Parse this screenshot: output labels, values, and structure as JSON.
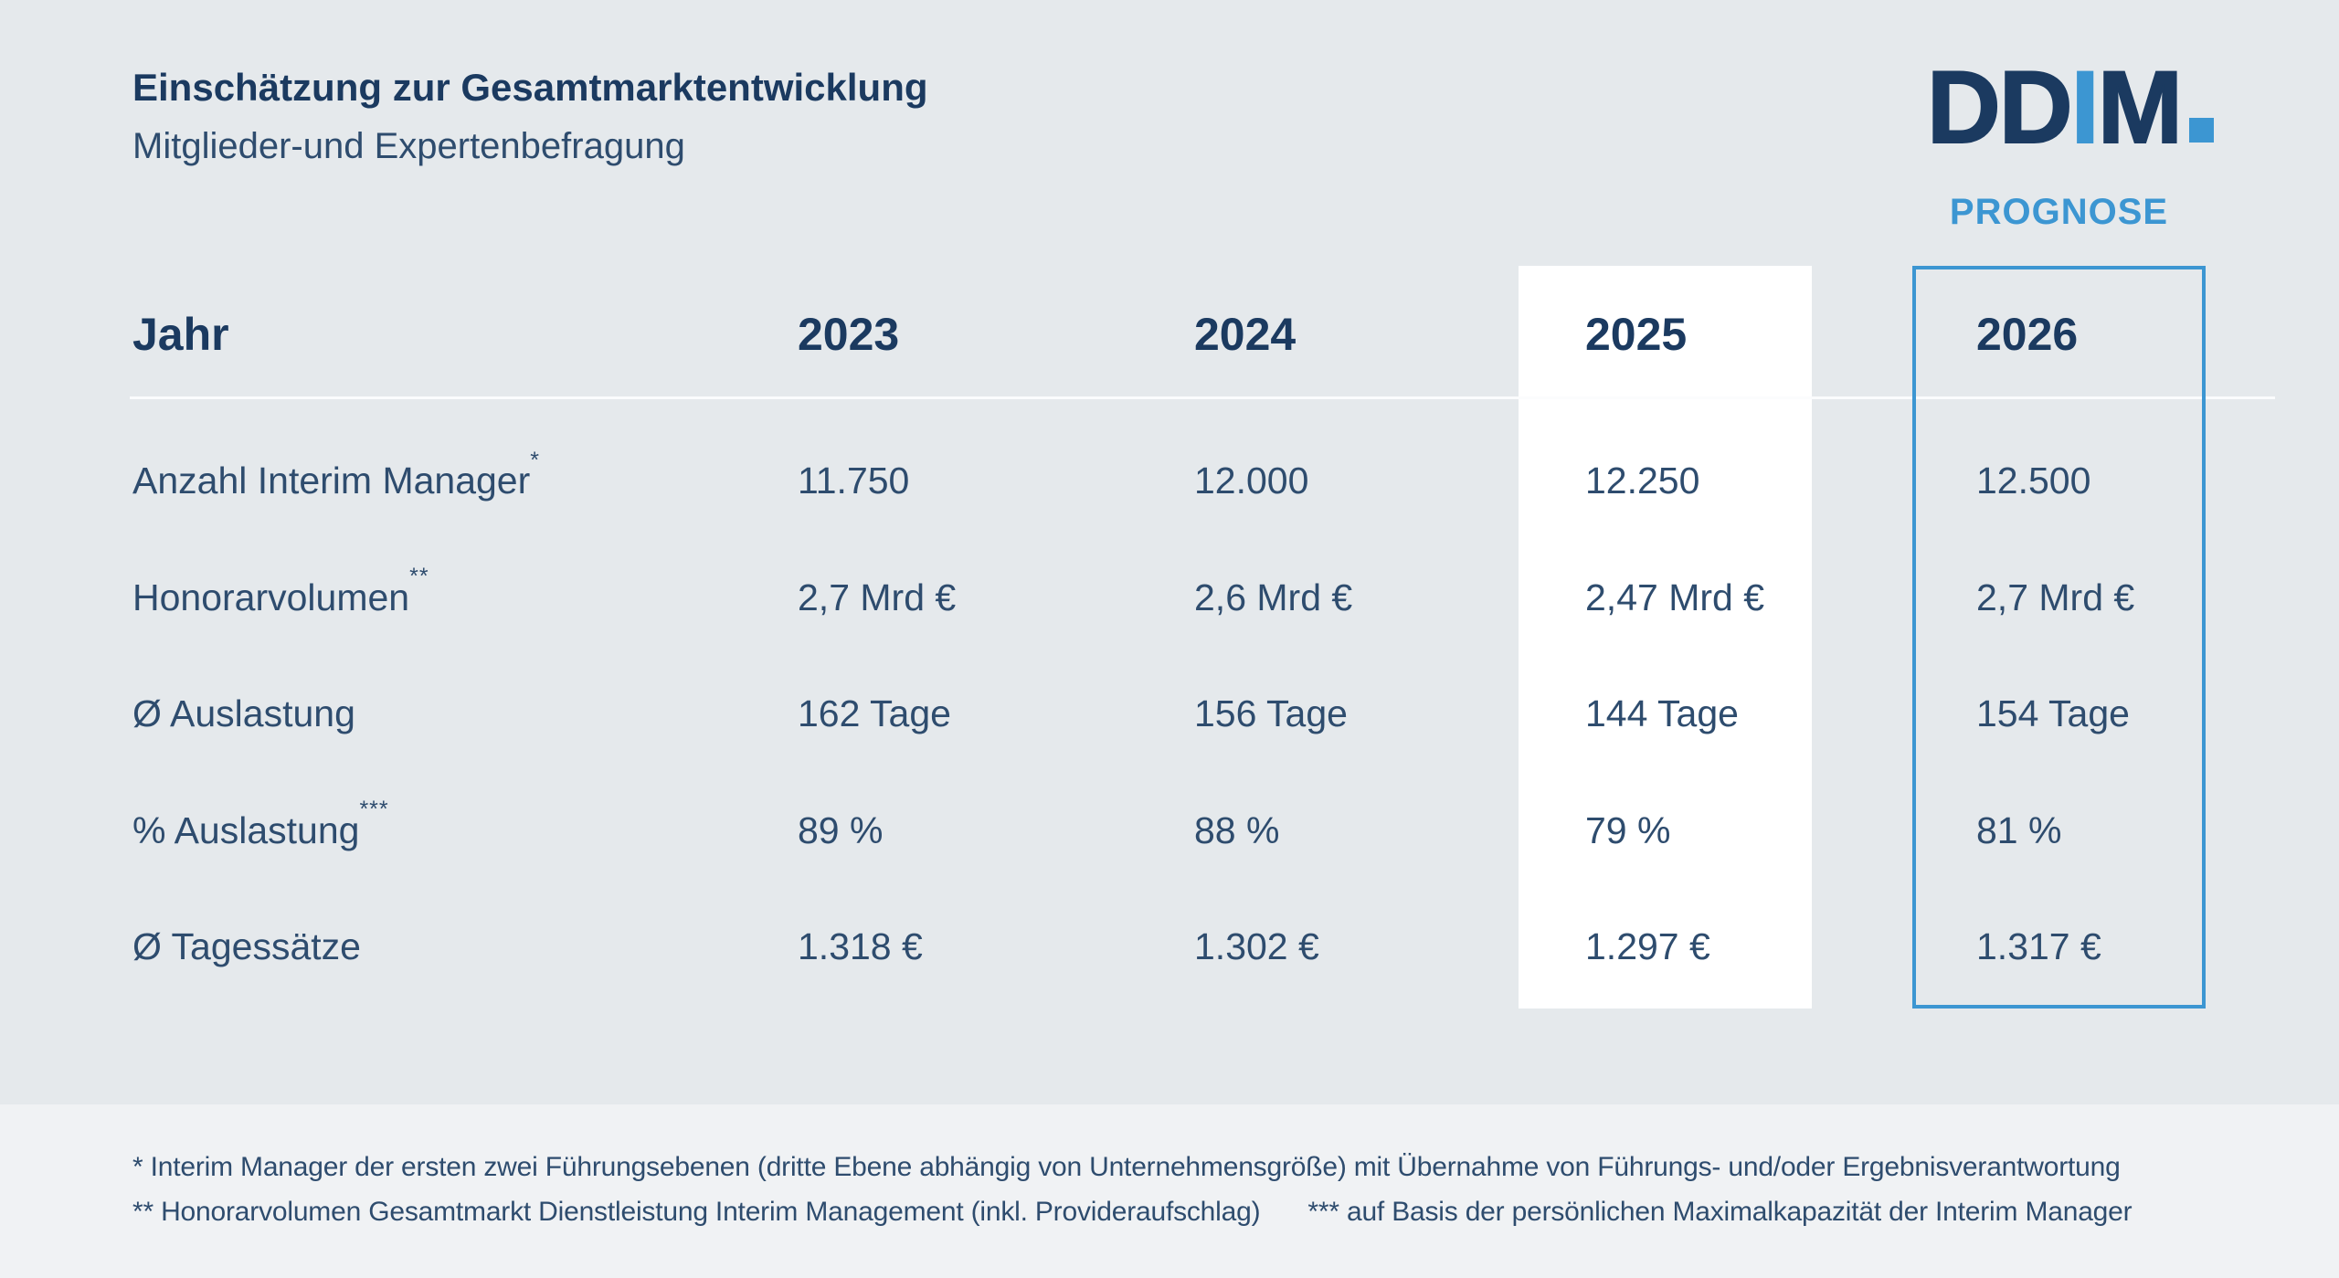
{
  "colors": {
    "background": "#e5e9ec",
    "footer_background": "#f0f2f4",
    "navy_bold": "#1b3a60",
    "text_navy": "#2e4c6e",
    "accent_blue": "#3c96d2",
    "highlight_column": "#ffffff"
  },
  "header": {
    "title": "Einschätzung zur Gesamtmarktentwicklung",
    "subtitle": "Mitglieder-und Expertenbefragung"
  },
  "logo": {
    "dark_1": "DD",
    "blue": "I",
    "dark_2": "M"
  },
  "prognose_label": "PROGNOSE",
  "table": {
    "header": {
      "label": "Jahr",
      "years": [
        "2023",
        "2024",
        "2025",
        "2026"
      ]
    },
    "rows": [
      {
        "label": "Anzahl Interim Manager",
        "sup": "*",
        "values": [
          "11.750",
          "12.000",
          "12.250",
          "12.500"
        ]
      },
      {
        "label": "Honorarvolumen",
        "sup": "**",
        "values": [
          "2,7 Mrd €",
          "2,6 Mrd €",
          "2,47 Mrd €",
          "2,7 Mrd €"
        ]
      },
      {
        "label": "Ø Auslastung",
        "sup": "",
        "values": [
          "162 Tage",
          "156 Tage",
          "144 Tage",
          "154 Tage"
        ]
      },
      {
        "label": "% Auslastung",
        "sup": "***",
        "values": [
          "89 %",
          "88 %",
          "79 %",
          "81 %"
        ]
      },
      {
        "label": "Ø Tagessätze",
        "sup": "",
        "values": [
          "1.318 €",
          "1.302 €",
          "1.297 €",
          "1.317 €"
        ]
      }
    ]
  },
  "footer": {
    "note_1": "* Interim Manager der ersten zwei Führungsebenen (dritte Ebene abhängig von Unternehmensgröße) mit Übernahme von Führungs- und/oder Ergebnisverantwortung",
    "note_2": "** Honorarvolumen Gesamtmarkt Dienstleistung Interim Management (inkl. Provideraufschlag)",
    "note_3": "*** auf Basis der persönlichen Maximalkapazität der Interim Manager"
  },
  "chart_data": {
    "type": "table",
    "title": "Einschätzung zur Gesamtmarktentwicklung",
    "subtitle": "Mitglieder-und Expertenbefragung",
    "columns": [
      "Jahr",
      "2023",
      "2024",
      "2025",
      "2026"
    ],
    "rows": [
      [
        "Anzahl Interim Manager*",
        "11.750",
        "12.000",
        "12.250",
        "12.500"
      ],
      [
        "Honorarvolumen**",
        "2,7 Mrd €",
        "2,6 Mrd €",
        "2,47 Mrd €",
        "2,7 Mrd €"
      ],
      [
        "Ø Auslastung",
        "162 Tage",
        "156 Tage",
        "144 Tage",
        "154 Tage"
      ],
      [
        "% Auslastung***",
        "89 %",
        "88 %",
        "79 %",
        "81 %"
      ],
      [
        "Ø Tagessätze",
        "1.318 €",
        "1.302 €",
        "1.297 €",
        "1.317 €"
      ]
    ],
    "annotations": {
      "highlighted_column": "2025",
      "forecast_column": "2026",
      "forecast_label": "PROGNOSE",
      "source_logo": "DDIM."
    }
  }
}
